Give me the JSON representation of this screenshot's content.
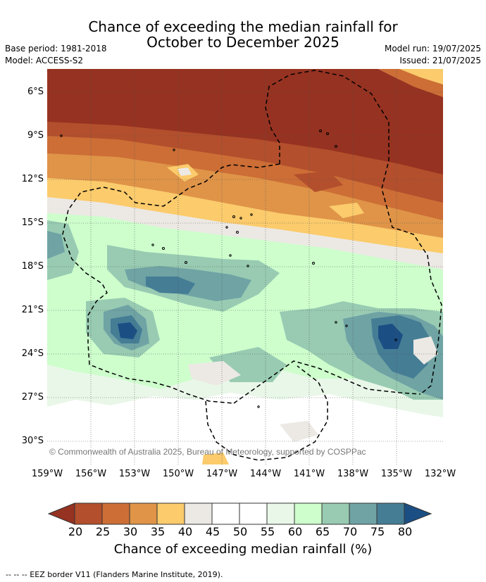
{
  "title": {
    "line1": "Chance of exceeding the median rainfall for",
    "line2": "October to December 2025"
  },
  "meta": {
    "base_period": "Base period: 1981-2018",
    "model": "Model: ACCESS-S2",
    "model_run": "Model run: 19/07/2025",
    "issued": "Issued: 21/07/2025"
  },
  "map": {
    "latitude_labels": [
      "6°S",
      "9°S",
      "12°S",
      "15°S",
      "18°S",
      "21°S",
      "24°S",
      "27°S",
      "30°S"
    ],
    "longitude_labels": [
      "159°W",
      "156°W",
      "153°W",
      "150°W",
      "147°W",
      "144°W",
      "141°W",
      "138°W",
      "135°W",
      "132°W"
    ],
    "copyright": "© Commonwealth of Australia 2025, Bureau of Meteorology, supported by COSPPac",
    "gridlines": true
  },
  "colorbar": {
    "ticks": [
      "20",
      "25",
      "30",
      "35",
      "40",
      "45",
      "50",
      "55",
      "60",
      "65",
      "70",
      "75",
      "80"
    ],
    "colors": [
      "#963221",
      "#b34f2c",
      "#cc6e36",
      "#df9448",
      "#fbcb6c",
      "#ece9e4",
      "#ffffff",
      "#ffffff",
      "#e9f7e8",
      "#cdfecc",
      "#98cbb2",
      "#6fa3a4",
      "#457d95",
      "#1b4f84"
    ],
    "label": "Chance of exceeding median rainfall (%)"
  },
  "footer": "--  --  -- EEZ border V11 (Flanders Marine Institute, 2019)."
}
